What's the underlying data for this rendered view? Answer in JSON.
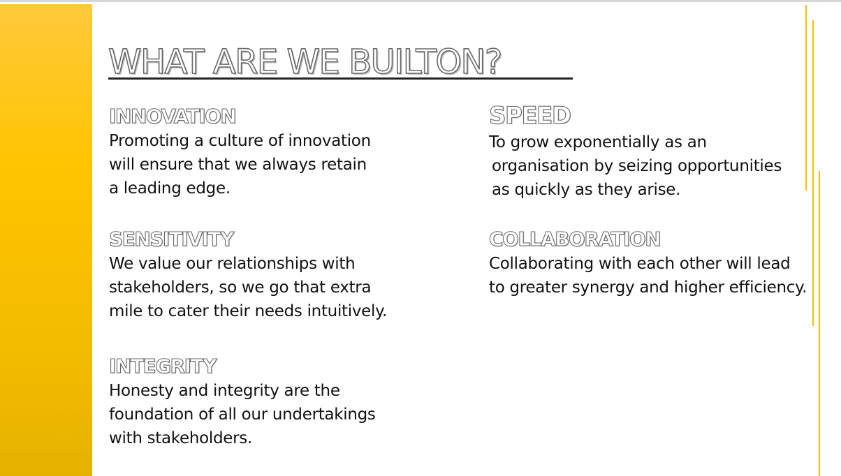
{
  "slide": {
    "title": "WHAT ARE  WE BUILTON?",
    "colors": {
      "accent": "#ffc400",
      "decor_line": "#f0c000",
      "body_text": "#111111"
    },
    "sections": {
      "innovation": {
        "heading": "INNOVATION",
        "lines": [
          "Promoting a culture of innovation",
          "will ensure that we always retain",
          "a leading edge."
        ]
      },
      "sensitivity": {
        "heading": "SENSITIVITY",
        "lines": [
          "We value our relationships with",
          "stakeholders, so we go that extra",
          "mile to cater their needs intuitively."
        ]
      },
      "integrity": {
        "heading": "INTEGRITY",
        "lines": [
          "Honesty and integrity are the",
          "foundation of all our undertakings",
          "with stakeholders."
        ]
      },
      "speed": {
        "heading": "SPEED",
        "lines": [
          "To grow exponentially as an",
          "organisation by seizing opportunities",
          "as quickly as they arise."
        ]
      },
      "collaboration": {
        "heading": "COLLABORATION",
        "lines": [
          "Collaborating with each other will lead",
          "to greater synergy and higher efficiency."
        ]
      }
    }
  }
}
